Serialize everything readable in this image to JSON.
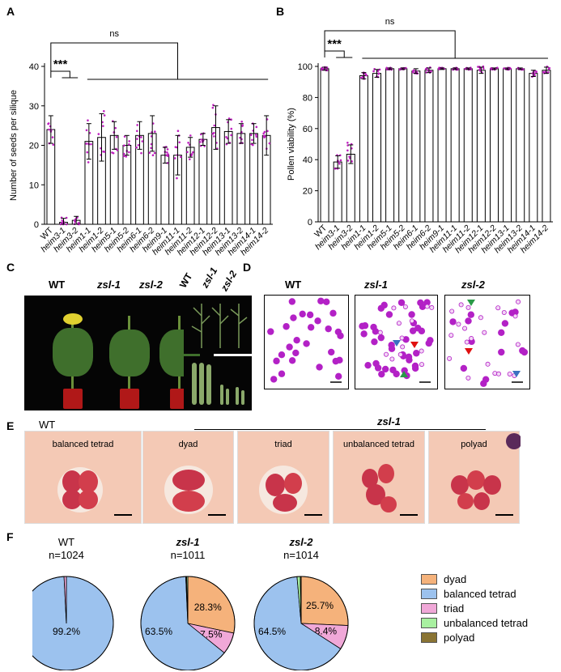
{
  "panels": {
    "A": "A",
    "B": "B",
    "C": "C",
    "D": "D",
    "E": "E",
    "F": "F"
  },
  "colors": {
    "bar_stroke": "#000000",
    "dots": "#c020c0",
    "dyad": "#f5b27b",
    "balanced": "#9cc2ee",
    "triad": "#f0a8d8",
    "unbalanced": "#a8f0a0",
    "polyad": "#8a7434",
    "pollen": "#b321c6",
    "arrow_red": "#e01010",
    "arrow_blue": "#3a70c0",
    "arrow_green": "#2a9a48"
  },
  "categories": [
    "WT",
    "heim3-1",
    "heim3-2",
    "heim1-1",
    "heim1-2",
    "heim5-1",
    "heim5-2",
    "heim6-1",
    "heim6-2",
    "heim9-1",
    "heim11-1",
    "heim11-2",
    "heim12-1",
    "heim12-2",
    "heim13-1",
    "heim13-2",
    "heim14-1",
    "heim14-2"
  ],
  "chart_data": [
    {
      "type": "bar",
      "title": "",
      "ylabel": "Number of seeds per silique",
      "xlabel": "",
      "ylim": [
        0,
        40
      ],
      "yticks": [
        "0",
        "10",
        "20",
        "30",
        "40"
      ],
      "values": [
        24,
        0.5,
        1,
        21,
        22,
        22.5,
        20,
        22.5,
        23,
        17.5,
        17.5,
        19.5,
        21.5,
        24.5,
        23.5,
        23,
        23,
        22.5
      ],
      "errors": [
        3.5,
        1,
        1,
        4.5,
        6,
        3.5,
        2.5,
        3.5,
        4.5,
        2,
        5,
        2.5,
        1.5,
        5.5,
        3,
        2.5,
        2.5,
        5
      ],
      "annotations": {
        "sig": "***",
        "ns": "ns"
      }
    },
    {
      "type": "bar",
      "title": "",
      "ylabel": "Pollen viability (%)",
      "xlabel": "",
      "ylim": [
        0,
        100
      ],
      "yticks": [
        "0",
        "20",
        "40",
        "60",
        "80",
        "100"
      ],
      "values": [
        98.5,
        38.5,
        43.5,
        94,
        95.5,
        98.5,
        98.5,
        97,
        97.5,
        98.5,
        98.5,
        98.5,
        97.5,
        98.5,
        98.5,
        98.5,
        95.5,
        97.5
      ],
      "errors": [
        1,
        4,
        6,
        2,
        2.5,
        0.5,
        0.5,
        1.5,
        1.5,
        0.5,
        0.5,
        0.5,
        2,
        0.5,
        0.5,
        0.5,
        2,
        2
      ],
      "annotations": {
        "sig": "***",
        "ns": "ns"
      }
    },
    {
      "type": "pie",
      "genotype": "WT",
      "count": "n=1024",
      "slices": [
        {
          "name": "balanced tetrad",
          "value": 99.2,
          "label": "99.2%"
        },
        {
          "name": "triad",
          "value": 0.8,
          "label": ""
        }
      ]
    },
    {
      "type": "pie",
      "genotype": "zsl-1",
      "count": "n=1011",
      "slices": [
        {
          "name": "dyad",
          "value": 28.3,
          "label": "28.3%"
        },
        {
          "name": "triad",
          "value": 7.5,
          "label": "7.5%"
        },
        {
          "name": "balanced tetrad",
          "value": 63.5,
          "label": "63.5%"
        },
        {
          "name": "polyad",
          "value": 0.3,
          "label": ""
        },
        {
          "name": "unbalanced tetrad",
          "value": 0.4,
          "label": ""
        }
      ]
    },
    {
      "type": "pie",
      "genotype": "zsl-2",
      "count": "n=1014",
      "slices": [
        {
          "name": "dyad",
          "value": 25.7,
          "label": "25.7%"
        },
        {
          "name": "triad",
          "value": 8.4,
          "label": "8.4%"
        },
        {
          "name": "balanced tetrad",
          "value": 64.5,
          "label": "64.5%"
        },
        {
          "name": "unbalanced tetrad",
          "value": 1.1,
          "label": ""
        },
        {
          "name": "polyad",
          "value": 0.3,
          "label": ""
        }
      ]
    }
  ],
  "panel_c": {
    "wt": "WT",
    "zsl1": "zsl-1",
    "zsl2": "zsl-2"
  },
  "panel_d": {
    "wt": "WT",
    "zsl1": "zsl-1",
    "zsl2": "zsl-2"
  },
  "panel_e": {
    "wt": "WT",
    "zsl1": "zsl-1",
    "captions": [
      "balanced tetrad",
      "dyad",
      "triad",
      "unbalanced tetrad",
      "polyad"
    ]
  },
  "legend": [
    "dyad",
    "balanced tetrad",
    "triad",
    "unbalanced tetrad",
    "polyad"
  ]
}
